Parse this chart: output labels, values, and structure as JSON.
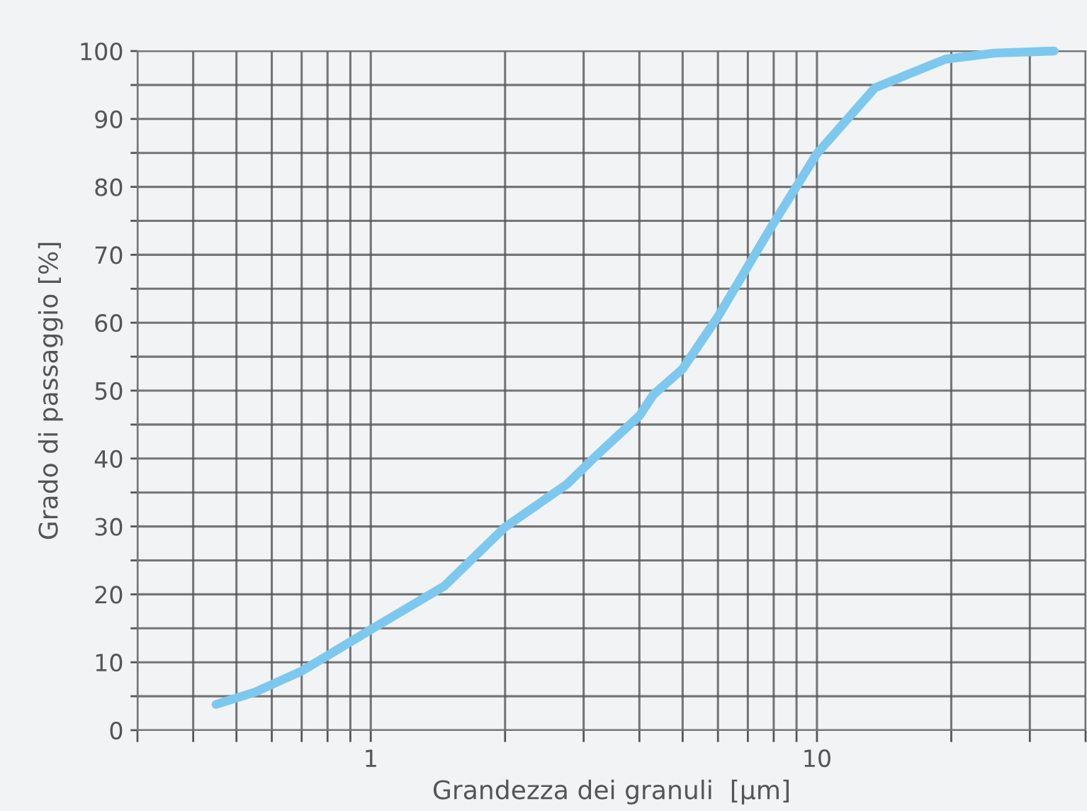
{
  "chart_data": {
    "type": "line",
    "xlabel": "Grandezza dei granuli  [µm]",
    "ylabel": "Grado di passaggio [%]",
    "log": "x",
    "grid": true,
    "line_style": "solid",
    "xlim": [
      0.3,
      40
    ],
    "ylim": [
      0,
      100
    ],
    "xticks": [
      {
        "value": 0.3,
        "label": null
      },
      {
        "value": 0.4,
        "label": null
      },
      {
        "value": 0.5,
        "label": null
      },
      {
        "value": 0.6,
        "label": null
      },
      {
        "value": 0.7,
        "label": null
      },
      {
        "value": 0.8,
        "label": null
      },
      {
        "value": 0.9,
        "label": null
      },
      1,
      {
        "value": 2,
        "label": null
      },
      {
        "value": 3,
        "label": null
      },
      {
        "value": 4,
        "label": null
      },
      {
        "value": 5,
        "label": null
      },
      {
        "value": 6,
        "label": null
      },
      {
        "value": 7,
        "label": null
      },
      {
        "value": 8,
        "label": null
      },
      {
        "value": 9,
        "label": null
      },
      10,
      {
        "value": 20,
        "label": null
      },
      {
        "value": 30,
        "label": null
      },
      {
        "value": 40,
        "label": null
      }
    ],
    "yticks": [
      0,
      {
        "value": 5,
        "label": null
      },
      10,
      {
        "value": 15,
        "label": null
      },
      20,
      {
        "value": 25,
        "label": null
      },
      30,
      {
        "value": 35,
        "label": null
      },
      40,
      {
        "value": 45,
        "label": null
      },
      50,
      {
        "value": 55,
        "label": null
      },
      60,
      {
        "value": 65,
        "label": null
      },
      70,
      {
        "value": 75,
        "label": null
      },
      80,
      {
        "value": 85,
        "label": null
      },
      90,
      {
        "value": 95,
        "label": null
      },
      100
    ],
    "series": [
      {
        "color": "#7dc8ee",
        "x": [
          0.45,
          0.55,
          0.7,
          1.0,
          1.46,
          2.0,
          2.75,
          3.2,
          4.0,
          4.3,
          5.0,
          6.0,
          7.9,
          10.0,
          13.5,
          19.4,
          25,
          34
        ],
        "values": [
          3.8,
          5.6,
          8.7,
          14.8,
          21.2,
          29.9,
          36.2,
          40.4,
          46.3,
          49.4,
          53.2,
          60.9,
          74.1,
          84.9,
          94.6,
          98.8,
          99.7,
          100
        ]
      }
    ]
  }
}
